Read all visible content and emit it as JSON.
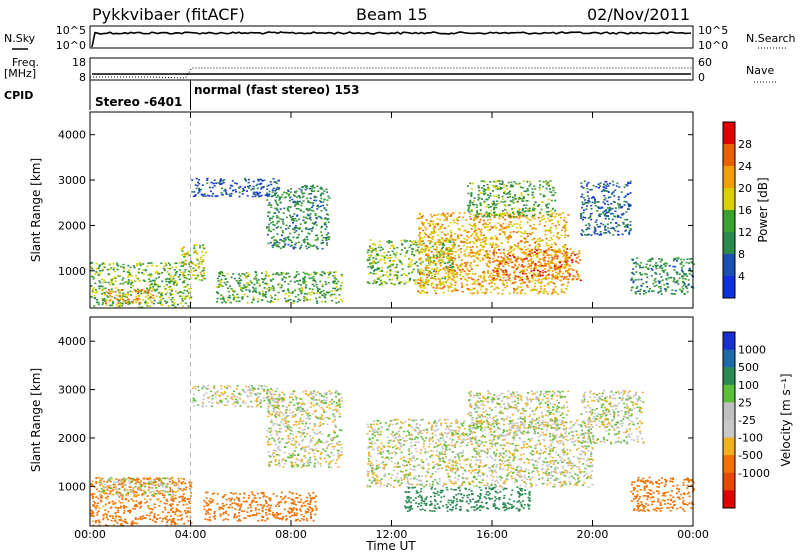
{
  "header": {
    "station": "Pykkvibaer (fitACF)",
    "beam": "Beam 15",
    "date": "02/Nov/2011"
  },
  "panels": {
    "nsky": {
      "left_label": "N.Sky",
      "left_ticks": [
        "10^5",
        "10^0"
      ],
      "right_ticks": [
        "10^5",
        "10^0"
      ],
      "right_label": "N.Search"
    },
    "freq": {
      "left_label_1": "Freq.",
      "left_label_2": "[MHz]",
      "left_ticks": [
        "18",
        "8"
      ],
      "right_ticks": [
        "60",
        "0"
      ],
      "right_label": "Nave"
    },
    "cpid": {
      "label": "CPID",
      "mode_1": "Stereo -6401",
      "mode_2": "normal (fast stereo) 153",
      "switch_time_h": 4.0
    }
  },
  "colors": {
    "power_scale": [
      "#1030e0",
      "#1b4fb0",
      "#2a8a4a",
      "#3aa030",
      "#d8d000",
      "#f0a000",
      "#e86000",
      "#e00000"
    ],
    "velocity_scale": [
      "#1a2fd0",
      "#1f6aa8",
      "#2e8a55",
      "#5cbf3a",
      "#c0c0c0",
      "#c8c8c8",
      "#f0b020",
      "#f07000",
      "#e84800",
      "#e00000"
    ]
  },
  "chart_data": [
    {
      "type": "heatmap",
      "name": "Power",
      "ylabel": "Slant Range [km]",
      "yticks": [
        "1000",
        "2000",
        "3000",
        "4000"
      ],
      "ylim": [
        180,
        4500
      ],
      "xlim_h": [
        0,
        24
      ],
      "colorbar_label": "Power [dB]",
      "colorbar_ticks": [
        "4",
        "8",
        "12",
        "16",
        "20",
        "24",
        "28"
      ],
      "colorbar_range": [
        0,
        32
      ],
      "regions": [
        {
          "t0": 0.0,
          "t1": 4.0,
          "r0": 200,
          "r1": 1200,
          "level": 14
        },
        {
          "t0": 0.5,
          "t1": 2.5,
          "r0": 300,
          "r1": 600,
          "level": 22
        },
        {
          "t0": 3.6,
          "t1": 4.6,
          "r0": 800,
          "r1": 1600,
          "level": 16
        },
        {
          "t0": 4.0,
          "t1": 7.5,
          "r0": 2650,
          "r1": 3050,
          "level": 4
        },
        {
          "t0": 7.0,
          "t1": 9.5,
          "r0": 1500,
          "r1": 2900,
          "level": 10
        },
        {
          "t0": 5.0,
          "t1": 10.0,
          "r0": 300,
          "r1": 1000,
          "level": 12
        },
        {
          "t0": 11.0,
          "t1": 14.5,
          "r0": 700,
          "r1": 1700,
          "level": 14
        },
        {
          "t0": 13.0,
          "t1": 19.0,
          "r0": 500,
          "r1": 2300,
          "level": 20
        },
        {
          "t0": 15.0,
          "t1": 18.5,
          "r0": 2200,
          "r1": 3000,
          "level": 12
        },
        {
          "t0": 16.0,
          "t1": 19.5,
          "r0": 800,
          "r1": 1500,
          "level": 24
        },
        {
          "t0": 19.5,
          "t1": 21.5,
          "r0": 1800,
          "r1": 3000,
          "level": 6
        },
        {
          "t0": 21.5,
          "t1": 24.0,
          "r0": 500,
          "r1": 1300,
          "level": 10
        }
      ]
    },
    {
      "type": "heatmap",
      "name": "Velocity",
      "ylabel": "Slant Range [km]",
      "yticks": [
        "1000",
        "2000",
        "3000",
        "4000"
      ],
      "ylim": [
        180,
        4500
      ],
      "xlim_h": [
        0,
        24
      ],
      "xlabel": "Time UT",
      "xticks": [
        "00:00",
        "04:00",
        "08:00",
        "12:00",
        "16:00",
        "20:00",
        "00:00"
      ],
      "colorbar_label": "Velocity [m s⁻¹]",
      "colorbar_ticks": [
        "1000",
        "500",
        "100",
        "25",
        "-25",
        "-100",
        "-500",
        "-1000"
      ],
      "regions": [
        {
          "t0": 0.0,
          "t1": 4.0,
          "r0": 200,
          "r1": 1200,
          "vel": -150
        },
        {
          "t0": 0.3,
          "t1": 3.5,
          "r0": 800,
          "r1": 1200,
          "vel": 0
        },
        {
          "t0": 4.0,
          "t1": 7.5,
          "r0": 2650,
          "r1": 3100,
          "vel": 0
        },
        {
          "t0": 7.0,
          "t1": 10.0,
          "r0": 1400,
          "r1": 3000,
          "vel": 0
        },
        {
          "t0": 4.5,
          "t1": 9.0,
          "r0": 300,
          "r1": 900,
          "vel": -200
        },
        {
          "t0": 11.0,
          "t1": 20.0,
          "r0": 1000,
          "r1": 2400,
          "vel": 0
        },
        {
          "t0": 12.5,
          "t1": 17.5,
          "r0": 500,
          "r1": 1000,
          "vel": 200
        },
        {
          "t0": 15.0,
          "t1": 19.0,
          "r0": 2200,
          "r1": 3000,
          "vel": 0
        },
        {
          "t0": 19.5,
          "t1": 22.0,
          "r0": 1900,
          "r1": 3000,
          "vel": 0
        },
        {
          "t0": 21.5,
          "t1": 24.0,
          "r0": 500,
          "r1": 1200,
          "vel": -300
        }
      ]
    }
  ]
}
